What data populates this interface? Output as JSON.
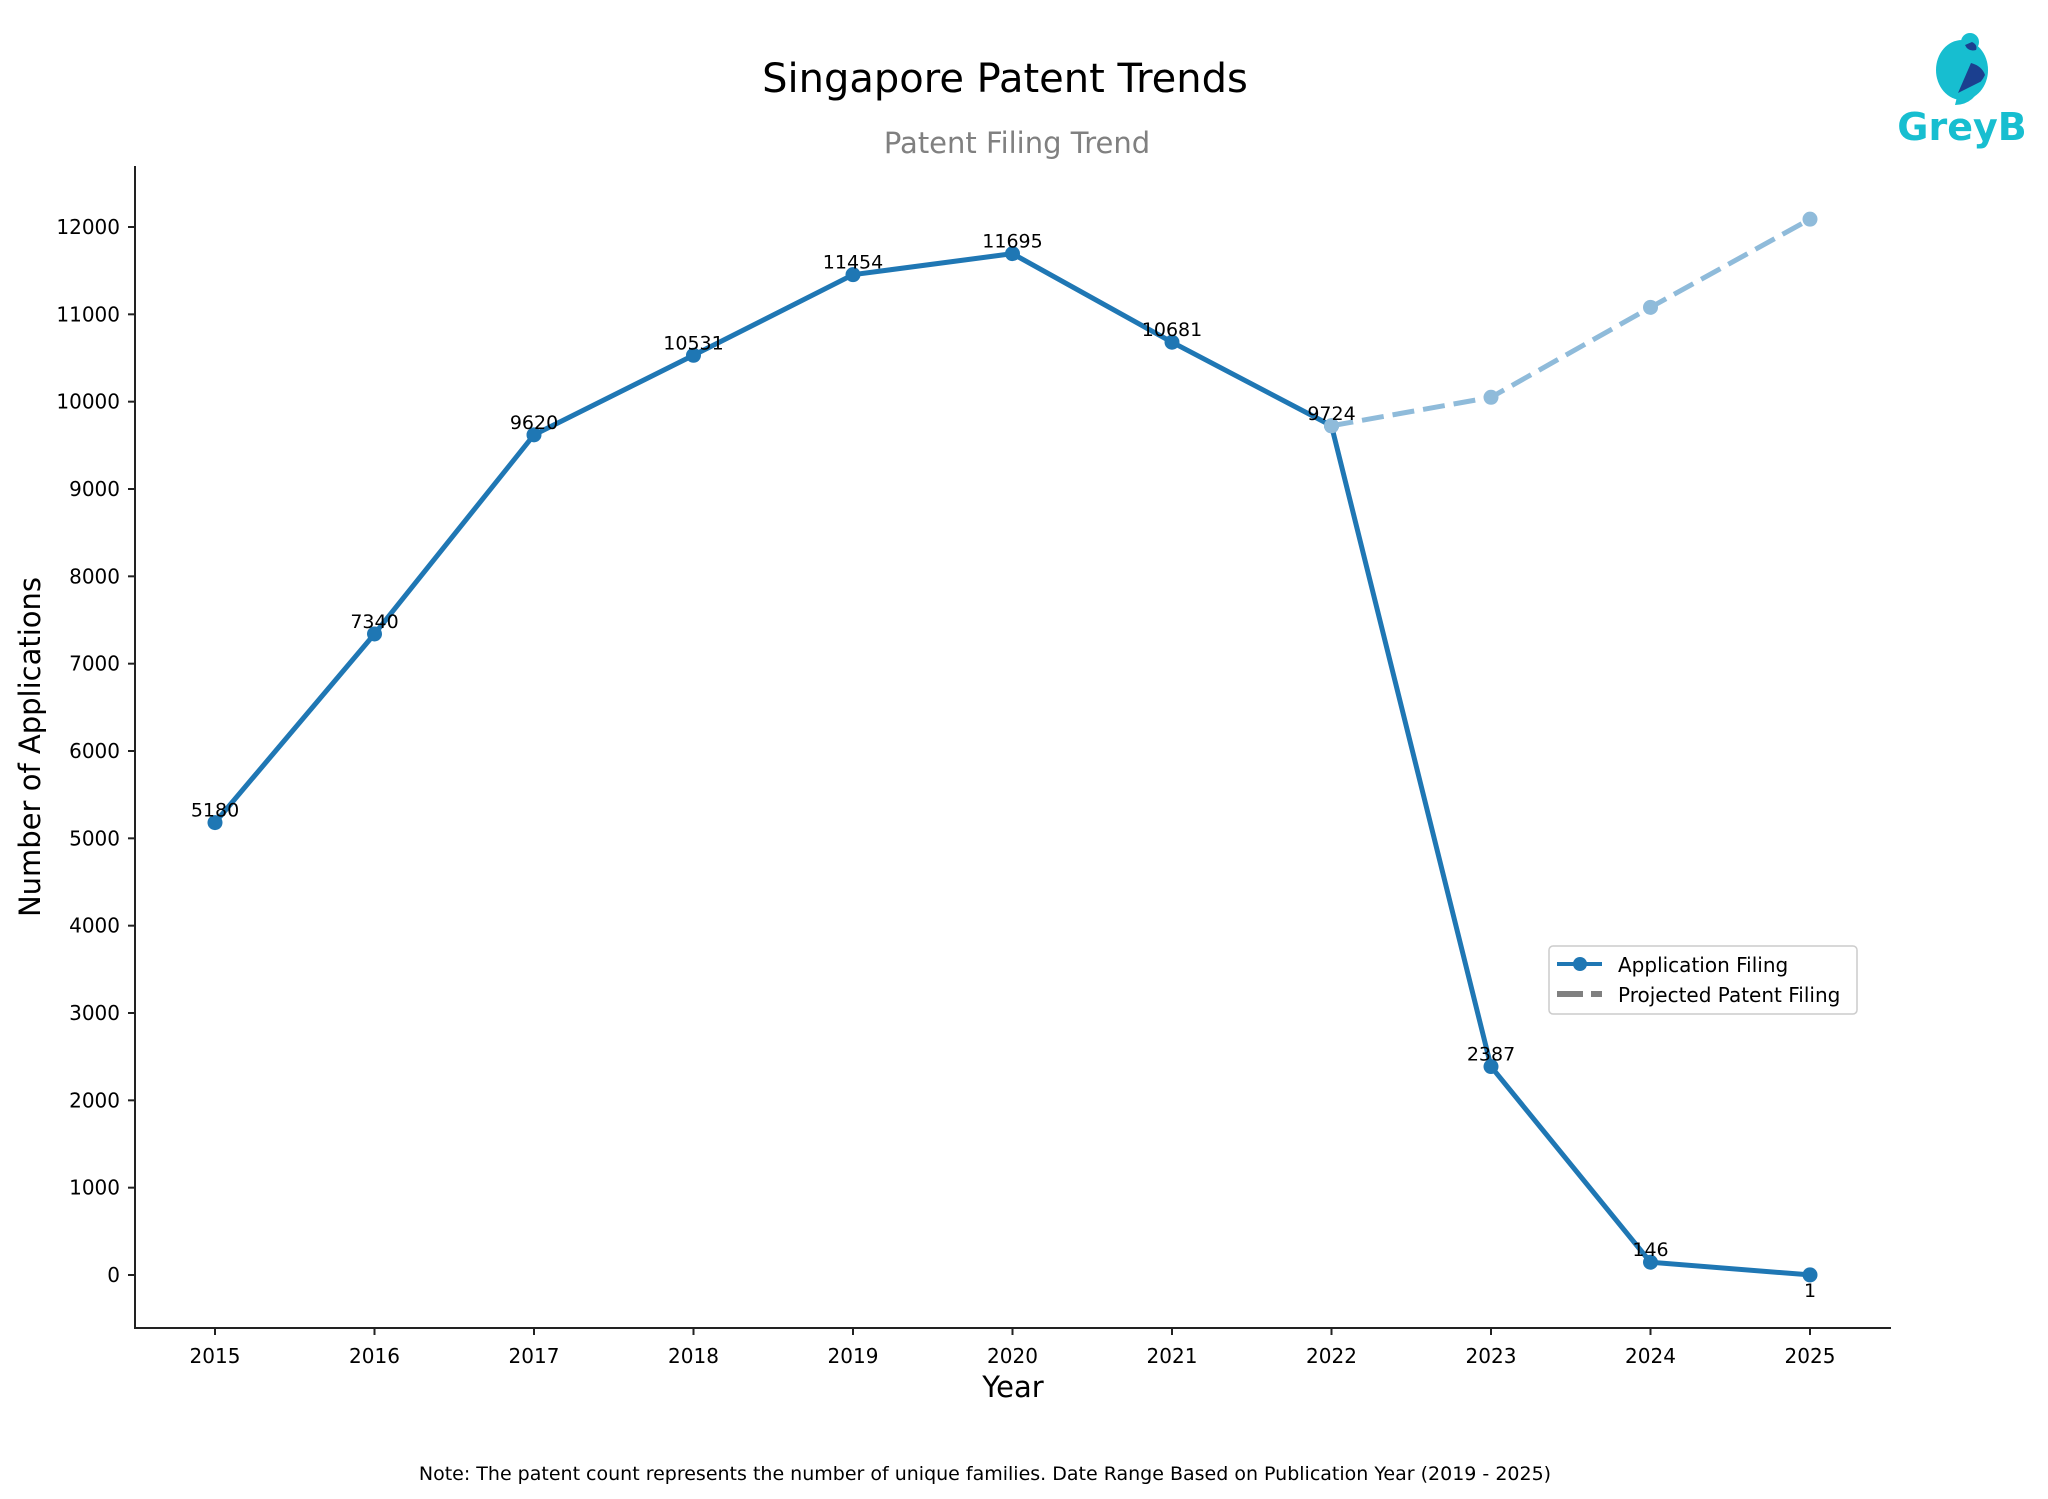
{
  "chart_data": {
    "type": "line",
    "title": "Singapore Patent Trends",
    "subtitle": "Patent Filing Trend",
    "xlabel": "Year",
    "ylabel": "Number of Applications",
    "x": [
      2015,
      2016,
      2017,
      2018,
      2019,
      2020,
      2021,
      2022,
      2023,
      2024,
      2025
    ],
    "x_tick_labels": [
      "2015",
      "2016",
      "2017",
      "2018",
      "2019",
      "2020",
      "2021",
      "2022",
      "2023",
      "2024",
      "2025"
    ],
    "y_ticks": [
      0,
      1000,
      2000,
      3000,
      4000,
      5000,
      6000,
      7000,
      8000,
      9000,
      10000,
      11000,
      12000
    ],
    "y_tick_labels": [
      "0",
      "1000",
      "2000",
      "3000",
      "4000",
      "5000",
      "6000",
      "7000",
      "8000",
      "9000",
      "10000",
      "11000",
      "12000"
    ],
    "ylim": [
      -605,
      12700
    ],
    "xlim": [
      2014.5,
      2025.5
    ],
    "grid": false,
    "legend_position": "center-right",
    "series": [
      {
        "name": "Application Filing",
        "style": "solid",
        "marker": "circle",
        "color": "#1f77b4",
        "x": [
          2015,
          2016,
          2017,
          2018,
          2019,
          2020,
          2021,
          2022,
          2023,
          2024,
          2025
        ],
        "values": [
          5180,
          7340,
          9620,
          10531,
          11454,
          11695,
          10681,
          9724,
          2387,
          146,
          1
        ],
        "data_labels": [
          "5180",
          "7340",
          "9620",
          "10531",
          "11454",
          "11695",
          "10681",
          "9724",
          "2387",
          "146",
          "1"
        ]
      },
      {
        "name": "Projected Patent Filing",
        "style": "dashed",
        "marker": "circle",
        "color": "#8fbbda",
        "x": [
          2022,
          2023,
          2024,
          2025
        ],
        "values": [
          9724,
          10050,
          11080,
          12090
        ]
      }
    ],
    "legend": [
      {
        "label": "Application Filing",
        "style": "solid-marker",
        "color": "#1f77b4"
      },
      {
        "label": "Projected Patent Filing",
        "style": "dashed",
        "color": "#808080"
      }
    ],
    "footnote": "Note: The patent count represents the number of unique families. Date Range Based on Publication Year (2019 - 2025)"
  },
  "brand": {
    "logo_text": "GreyB",
    "primary_color": "#17bed0",
    "secondary_color": "#1b3f8f"
  }
}
